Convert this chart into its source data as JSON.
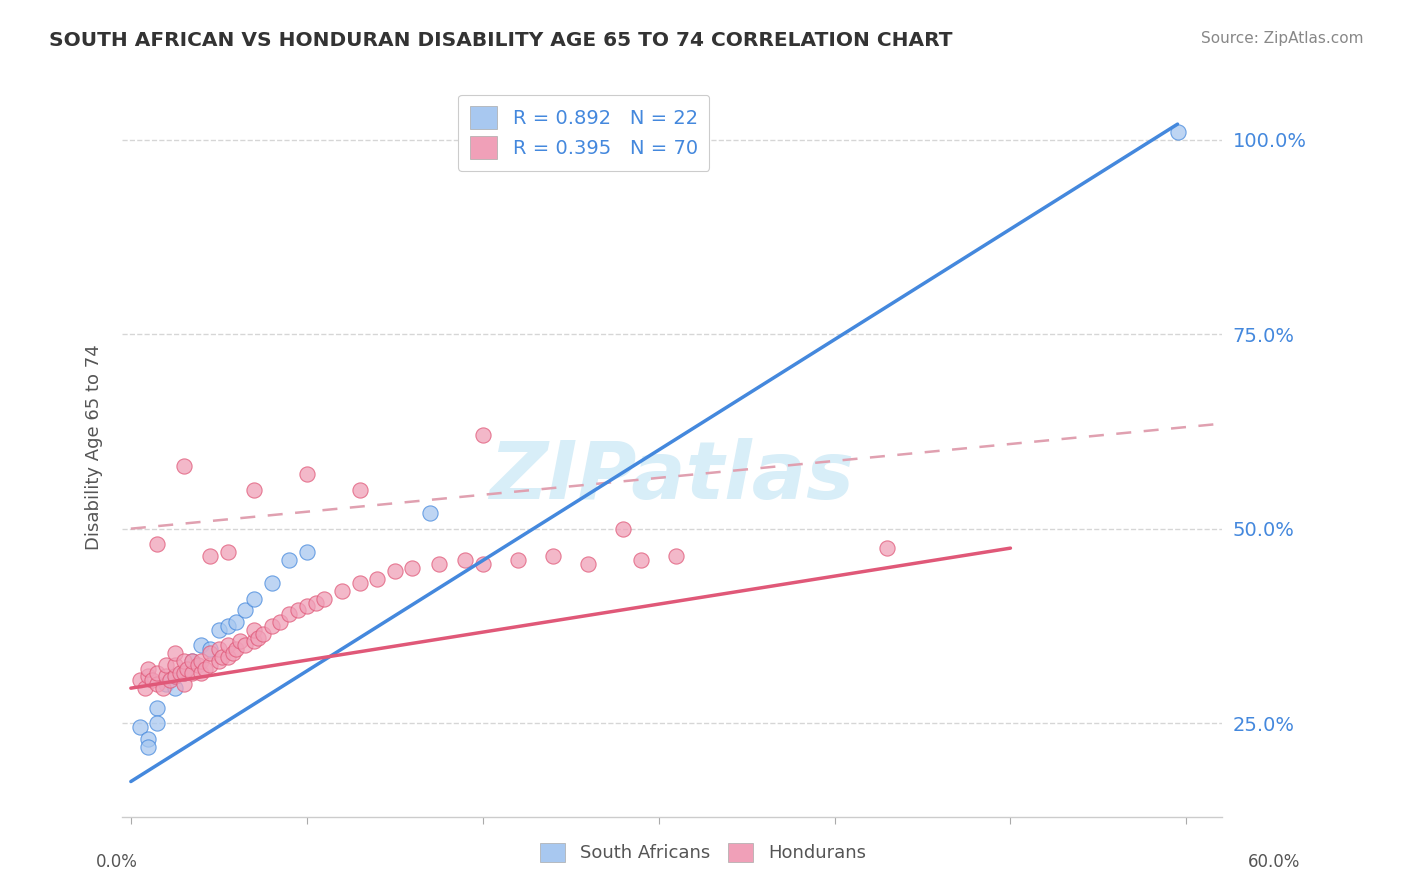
{
  "title": "SOUTH AFRICAN VS HONDURAN DISABILITY AGE 65 TO 74 CORRELATION CHART",
  "source": "Source: ZipAtlas.com",
  "ylabel": "Disability Age 65 to 74",
  "r_sa": 0.892,
  "n_sa": 22,
  "r_hn": 0.395,
  "n_hn": 70,
  "xlim": [
    -0.005,
    0.62
  ],
  "ylim": [
    0.13,
    1.08
  ],
  "yticks": [
    0.25,
    0.5,
    0.75,
    1.0
  ],
  "ytick_labels": [
    "25.0%",
    "50.0%",
    "75.0%",
    "100.0%"
  ],
  "color_sa": "#A8C8F0",
  "color_hn": "#F0A0B8",
  "line_color_sa": "#4488DD",
  "line_color_hn": "#E05878",
  "dashed_line_color": "#E0A0B0",
  "grid_color": "#CCCCCC",
  "watermark_color": "#D8EEF8",
  "title_color": "#333333",
  "source_color": "#888888",
  "legend_text_color": "#4488DD",
  "background_color": "#FFFFFF",
  "sa_line_x0": 0.0,
  "sa_line_y0": 0.175,
  "sa_line_x1": 0.595,
  "sa_line_y1": 1.02,
  "hn_line_x0": 0.0,
  "hn_line_y0": 0.295,
  "hn_line_x1": 0.5,
  "hn_line_y1": 0.475,
  "dash_line_x0": 0.0,
  "dash_line_y0": 0.5,
  "dash_line_x1": 0.62,
  "dash_line_y1": 0.635,
  "sa_points_x": [
    0.005,
    0.01,
    0.01,
    0.015,
    0.015,
    0.02,
    0.025,
    0.025,
    0.03,
    0.035,
    0.04,
    0.045,
    0.05,
    0.055,
    0.06,
    0.065,
    0.07,
    0.08,
    0.09,
    0.1,
    0.17,
    0.595
  ],
  "sa_points_y": [
    0.245,
    0.23,
    0.22,
    0.27,
    0.25,
    0.3,
    0.295,
    0.31,
    0.315,
    0.33,
    0.35,
    0.345,
    0.37,
    0.375,
    0.38,
    0.395,
    0.41,
    0.43,
    0.46,
    0.47,
    0.52,
    1.01
  ],
  "hn_points_x": [
    0.005,
    0.008,
    0.01,
    0.01,
    0.012,
    0.015,
    0.015,
    0.018,
    0.02,
    0.02,
    0.022,
    0.025,
    0.025,
    0.025,
    0.028,
    0.03,
    0.03,
    0.03,
    0.032,
    0.035,
    0.035,
    0.038,
    0.04,
    0.04,
    0.042,
    0.045,
    0.045,
    0.05,
    0.05,
    0.052,
    0.055,
    0.055,
    0.058,
    0.06,
    0.062,
    0.065,
    0.07,
    0.07,
    0.072,
    0.075,
    0.08,
    0.085,
    0.09,
    0.095,
    0.1,
    0.105,
    0.11,
    0.12,
    0.13,
    0.14,
    0.15,
    0.16,
    0.175,
    0.19,
    0.2,
    0.22,
    0.24,
    0.26,
    0.29,
    0.31,
    0.07,
    0.1,
    0.13,
    0.2,
    0.28,
    0.43,
    0.015,
    0.045,
    0.03,
    0.055
  ],
  "hn_points_y": [
    0.305,
    0.295,
    0.31,
    0.32,
    0.305,
    0.3,
    0.315,
    0.295,
    0.31,
    0.325,
    0.305,
    0.31,
    0.325,
    0.34,
    0.315,
    0.3,
    0.315,
    0.33,
    0.32,
    0.315,
    0.33,
    0.325,
    0.315,
    0.33,
    0.32,
    0.325,
    0.34,
    0.33,
    0.345,
    0.335,
    0.335,
    0.35,
    0.34,
    0.345,
    0.355,
    0.35,
    0.355,
    0.37,
    0.36,
    0.365,
    0.375,
    0.38,
    0.39,
    0.395,
    0.4,
    0.405,
    0.41,
    0.42,
    0.43,
    0.435,
    0.445,
    0.45,
    0.455,
    0.46,
    0.455,
    0.46,
    0.465,
    0.455,
    0.46,
    0.465,
    0.55,
    0.57,
    0.55,
    0.62,
    0.5,
    0.475,
    0.48,
    0.465,
    0.58,
    0.47
  ]
}
